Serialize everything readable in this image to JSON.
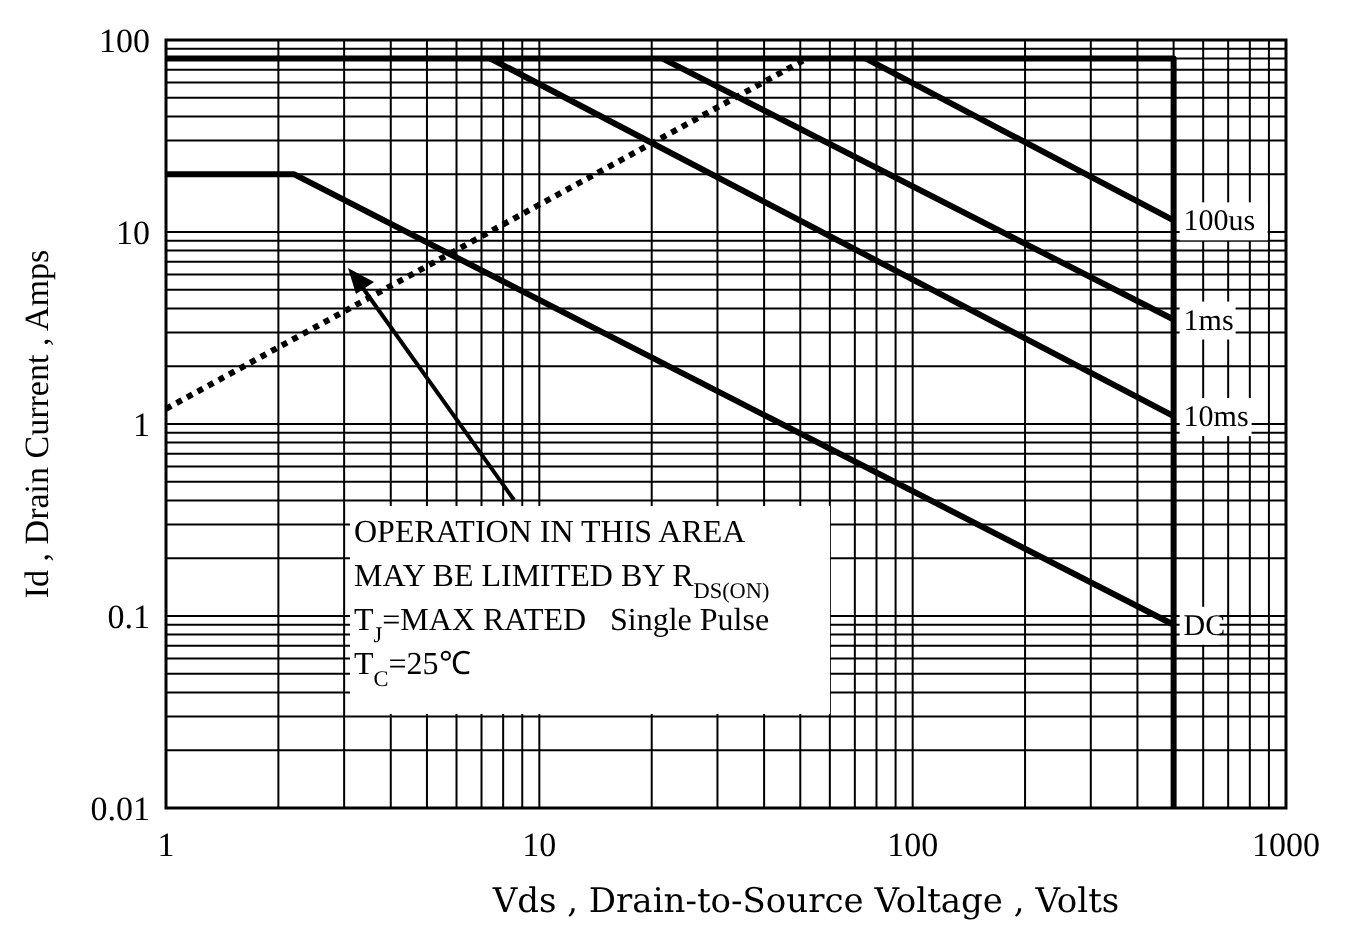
{
  "chart_data": {
    "type": "line",
    "xlabel": "Vds , Drain-to-Source Voltage , Volts",
    "ylabel": "Id , Drain Current , Amps",
    "log": "xy",
    "grid": true,
    "xlim": [
      1,
      1000
    ],
    "ylim": [
      0.01,
      100
    ],
    "xticks": [
      1,
      {
        "value": 2,
        "label": null
      },
      {
        "value": 3,
        "label": null
      },
      {
        "value": 4,
        "label": null
      },
      {
        "value": 5,
        "label": null
      },
      {
        "value": 6,
        "label": null
      },
      {
        "value": 7,
        "label": null
      },
      {
        "value": 8,
        "label": null
      },
      {
        "value": 9,
        "label": null
      },
      10,
      {
        "value": 20,
        "label": null
      },
      {
        "value": 30,
        "label": null
      },
      {
        "value": 40,
        "label": null
      },
      {
        "value": 50,
        "label": null
      },
      {
        "value": 60,
        "label": null
      },
      {
        "value": 70,
        "label": null
      },
      {
        "value": 80,
        "label": null
      },
      {
        "value": 90,
        "label": null
      },
      100,
      {
        "value": 200,
        "label": null
      },
      {
        "value": 300,
        "label": null
      },
      {
        "value": 400,
        "label": null
      },
      {
        "value": 500,
        "label": null
      },
      {
        "value": 600,
        "label": null
      },
      {
        "value": 700,
        "label": null
      },
      {
        "value": 800,
        "label": null
      },
      {
        "value": 900,
        "label": null
      },
      1000
    ],
    "yticks": [
      0.01,
      {
        "value": 0.02,
        "label": null
      },
      {
        "value": 0.03,
        "label": null
      },
      {
        "value": 0.04,
        "label": null
      },
      {
        "value": 0.05,
        "label": null
      },
      {
        "value": 0.06,
        "label": null
      },
      {
        "value": 0.07,
        "label": null
      },
      {
        "value": 0.08,
        "label": null
      },
      {
        "value": 0.09,
        "label": null
      },
      0.1,
      {
        "value": 0.2,
        "label": null
      },
      {
        "value": 0.3,
        "label": null
      },
      {
        "value": 0.4,
        "label": null
      },
      {
        "value": 0.5,
        "label": null
      },
      {
        "value": 0.6,
        "label": null
      },
      {
        "value": 0.7,
        "label": null
      },
      {
        "value": 0.8,
        "label": null
      },
      {
        "value": 0.9,
        "label": null
      },
      1,
      {
        "value": 2,
        "label": null
      },
      {
        "value": 3,
        "label": null
      },
      {
        "value": 4,
        "label": null
      },
      {
        "value": 5,
        "label": null
      },
      {
        "value": 6,
        "label": null
      },
      {
        "value": 7,
        "label": null
      },
      {
        "value": 8,
        "label": null
      },
      {
        "value": 9,
        "label": null
      },
      10,
      {
        "value": 20,
        "label": null
      },
      {
        "value": 30,
        "label": null
      },
      {
        "value": 40,
        "label": null
      },
      {
        "value": 50,
        "label": null
      },
      {
        "value": 60,
        "label": null
      },
      {
        "value": 70,
        "label": null
      },
      {
        "value": 80,
        "label": null
      },
      {
        "value": 90,
        "label": null
      },
      100
    ],
    "series": [
      {
        "color": "#000000",
        "x": [
          1,
          500,
          500
        ],
        "values": [
          80,
          80,
          0.01
        ],
        "line_style": "solid"
      },
      {
        "name": "100us",
        "color": "#000000",
        "x": [
          75,
          500
        ],
        "values": [
          80,
          11.5
        ],
        "line_style": "solid"
      },
      {
        "name": "1ms",
        "color": "#000000",
        "x": [
          21.4,
          500
        ],
        "values": [
          80,
          3.5
        ],
        "line_style": "solid"
      },
      {
        "name": "10ms",
        "color": "#000000",
        "x": [
          7.4,
          500
        ],
        "values": [
          80,
          1.1
        ],
        "line_style": "solid"
      },
      {
        "name": "DC",
        "color": "#000000",
        "x": [
          1,
          2.2,
          500
        ],
        "values": [
          20,
          20,
          0.09
        ],
        "line_style": "solid"
      },
      {
        "color": "#000000",
        "x": [
          1,
          52
        ],
        "values": [
          1.2,
          80
        ],
        "line_style": "dotted"
      }
    ],
    "annotations": [
      "OPERATION IN THIS AREA MAY BE LIMITED BY R$_{DS(ON)}$",
      "T$_{J}$=MAX RATED",
      "T$_{C}$=25℃",
      "Single Pulse"
    ]
  }
}
